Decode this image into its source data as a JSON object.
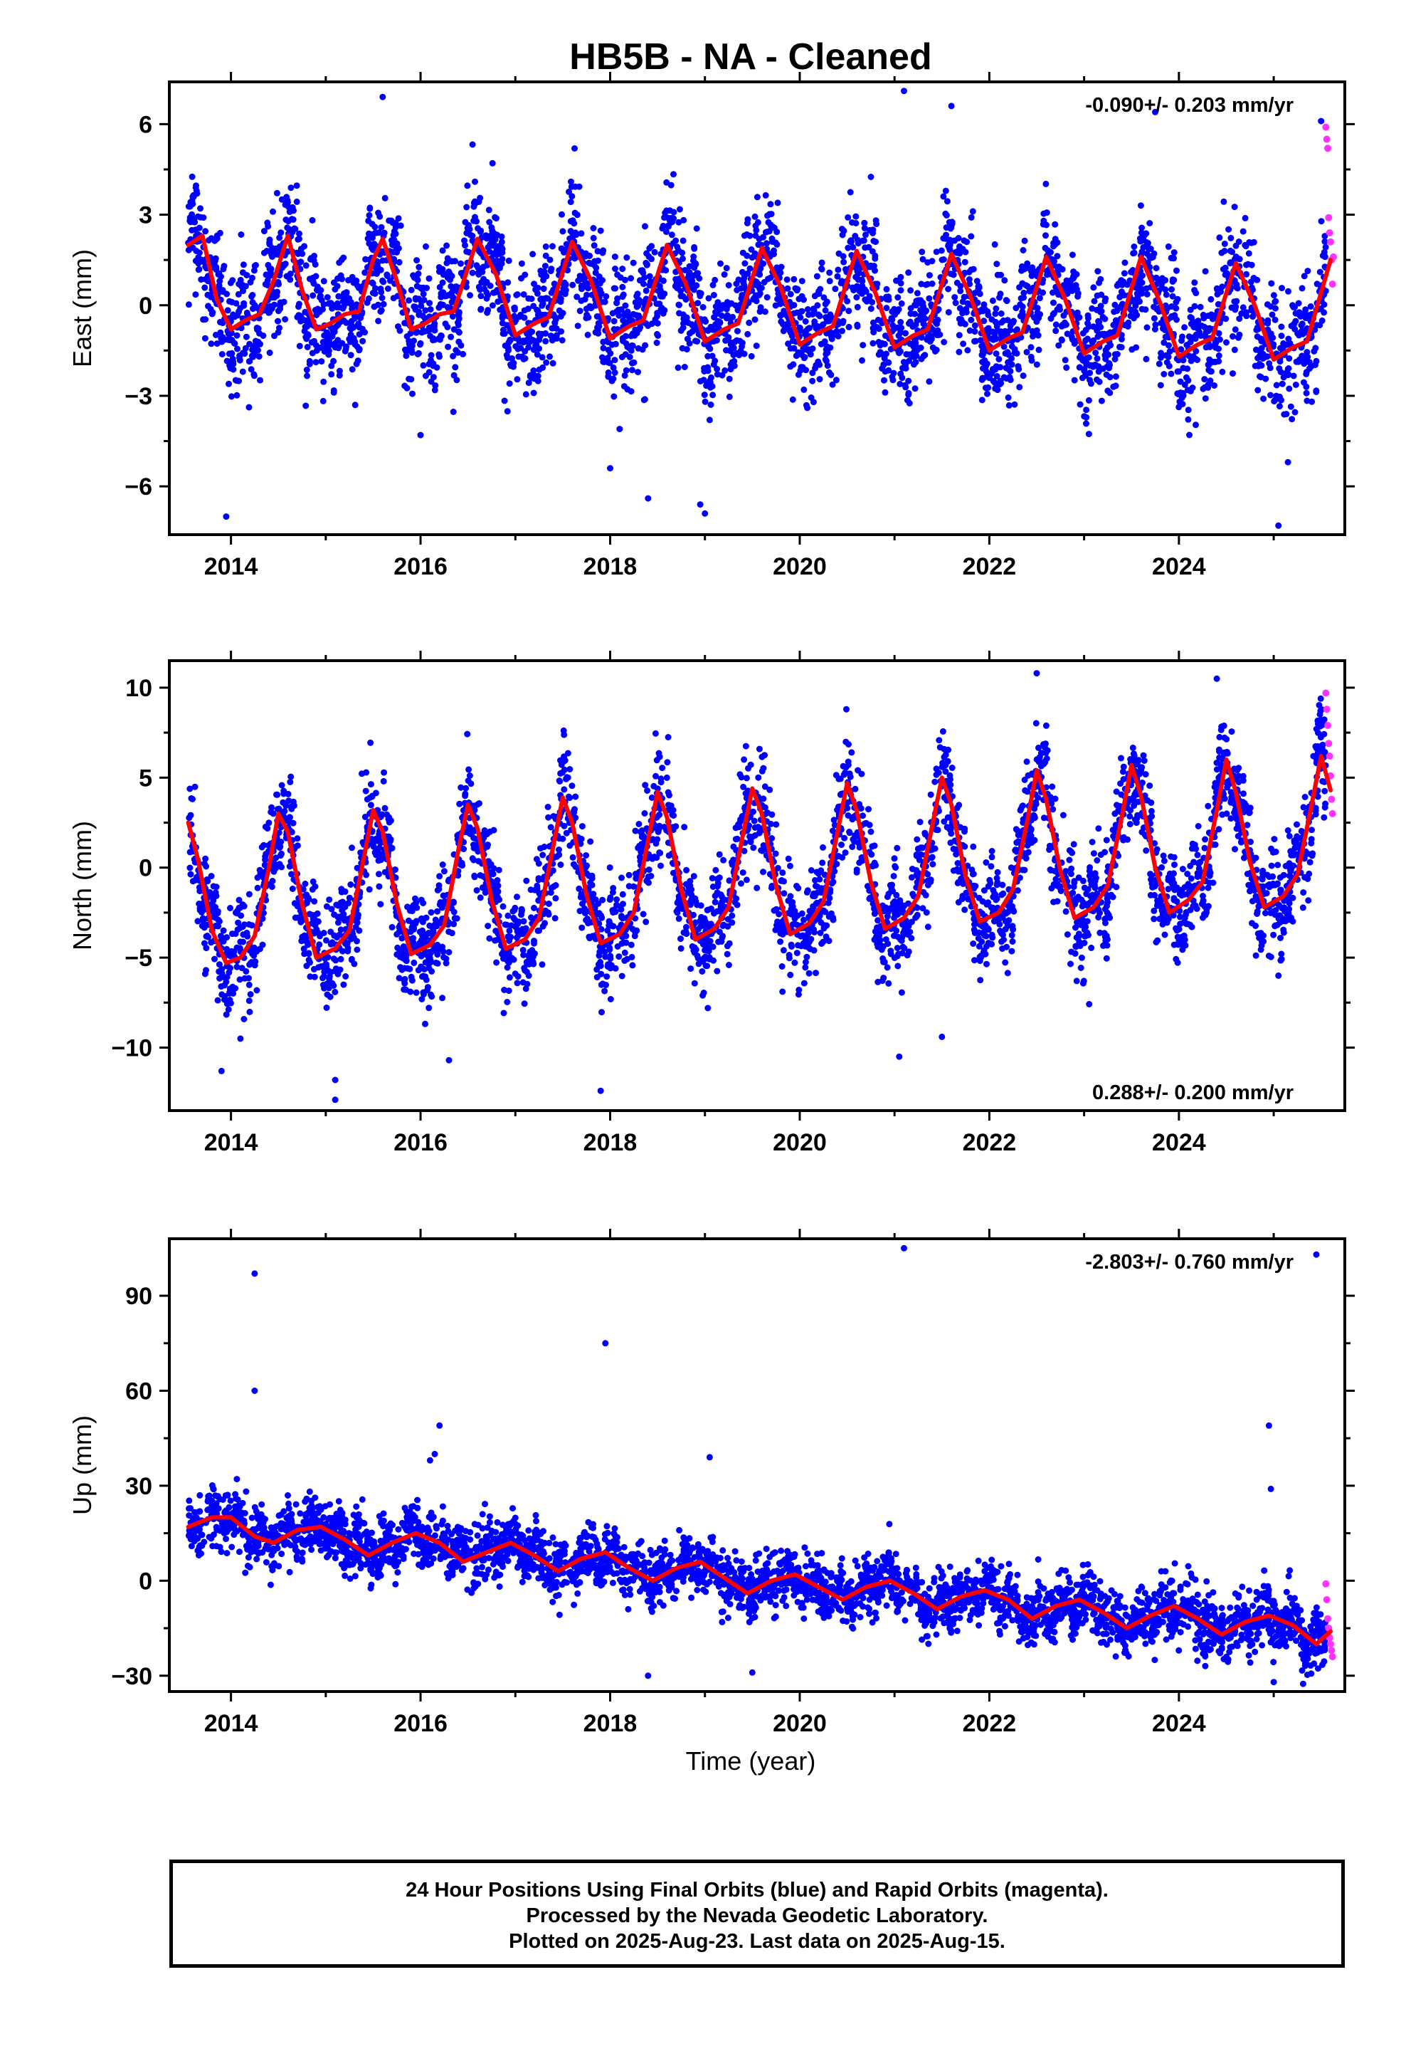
{
  "title": "HB5B  - NA - Cleaned",
  "xlabel": "Time (year)",
  "colors": {
    "final": "#0000ff",
    "rapid": "#ff33ff",
    "model": "#ff0000"
  },
  "chart_data": [
    {
      "type": "scatter",
      "name": "east",
      "ylabel": "East (mm)",
      "rate_label": "-0.090+/- 0.203 mm/yr",
      "rate_position": "top-right",
      "xlim": [
        2013.35,
        2025.75
      ],
      "ylim": [
        -7.6,
        7.4
      ],
      "xticks": [
        2014,
        2016,
        2018,
        2020,
        2022,
        2024
      ],
      "yticks": [
        -6,
        -3,
        0,
        3,
        6
      ],
      "ytick_labels": [
        "−6",
        "−3",
        "0",
        "3",
        "6"
      ],
      "model_curve": {
        "x": [
          2013.55,
          2013.7,
          2013.85,
          2014.0,
          2014.15,
          2014.3,
          2014.45,
          2014.6,
          2014.75,
          2014.9,
          2015.05,
          2015.2,
          2015.35,
          2015.5,
          2015.6,
          2015.75,
          2015.9,
          2016.05,
          2016.2,
          2016.35,
          2016.6,
          2016.8,
          2017.0,
          2017.2,
          2017.35,
          2017.6,
          2017.8,
          2018.0,
          2018.2,
          2018.35,
          2018.6,
          2018.8,
          2019.0,
          2019.2,
          2019.35,
          2019.6,
          2019.8,
          2020.0,
          2020.2,
          2020.35,
          2020.6,
          2020.8,
          2021.0,
          2021.2,
          2021.35,
          2021.6,
          2021.8,
          2022.0,
          2022.2,
          2022.35,
          2022.6,
          2022.8,
          2023.0,
          2023.2,
          2023.35,
          2023.6,
          2023.8,
          2024.0,
          2024.2,
          2024.35,
          2024.6,
          2024.8,
          2025.0,
          2025.2,
          2025.35,
          2025.6
        ],
        "y": [
          2.0,
          2.3,
          0.2,
          -0.8,
          -0.5,
          -0.3,
          0.8,
          2.3,
          0.5,
          -0.8,
          -0.6,
          -0.3,
          -0.2,
          1.5,
          2.2,
          0.8,
          -0.8,
          -0.6,
          -0.3,
          -0.2,
          2.2,
          1.0,
          -1.0,
          -0.6,
          -0.4,
          2.1,
          0.8,
          -1.1,
          -0.7,
          -0.5,
          2.0,
          0.7,
          -1.2,
          -0.8,
          -0.6,
          1.9,
          0.6,
          -1.3,
          -0.9,
          -0.7,
          1.8,
          0.4,
          -1.4,
          -1.0,
          -0.8,
          1.7,
          0.3,
          -1.5,
          -1.1,
          -0.9,
          1.6,
          0.2,
          -1.6,
          -1.2,
          -1.0,
          1.6,
          0.1,
          -1.7,
          -1.3,
          -1.1,
          1.4,
          0.0,
          -1.8,
          -1.4,
          -1.2,
          1.5
        ]
      },
      "scatter_params": {
        "trend_per_yr": -0.09,
        "annual_amplitude": 1.7,
        "peak_phase_yr": 0.6,
        "noise_sd": 1.0,
        "n_points": 3600
      },
      "anomalies": [
        [
          2013.95,
          -7.0
        ],
        [
          2015.6,
          6.9
        ],
        [
          2016.0,
          -4.3
        ],
        [
          2018.0,
          -5.4
        ],
        [
          2018.1,
          -4.1
        ],
        [
          2018.4,
          -6.4
        ],
        [
          2018.95,
          -6.6
        ],
        [
          2019.0,
          -6.9
        ],
        [
          2021.1,
          7.1
        ],
        [
          2021.6,
          6.6
        ],
        [
          2023.75,
          6.4
        ],
        [
          2025.05,
          -7.3
        ],
        [
          2025.15,
          -5.2
        ],
        [
          2025.5,
          6.1
        ]
      ],
      "rapid_points": [
        [
          2025.55,
          5.9
        ],
        [
          2025.56,
          5.5
        ],
        [
          2025.57,
          5.2
        ],
        [
          2025.58,
          2.9
        ],
        [
          2025.59,
          2.4
        ],
        [
          2025.6,
          2.1
        ],
        [
          2025.61,
          1.5
        ],
        [
          2025.62,
          0.7
        ],
        [
          2025.63,
          1.6
        ]
      ]
    },
    {
      "type": "scatter",
      "name": "north",
      "ylabel": "North (mm)",
      "rate_label": "0.288+/- 0.200 mm/yr",
      "rate_position": "bottom-right",
      "xlim": [
        2013.35,
        2025.75
      ],
      "ylim": [
        -13.5,
        11.5
      ],
      "xticks": [
        2014,
        2016,
        2018,
        2020,
        2022,
        2024
      ],
      "yticks": [
        -10,
        -5,
        0,
        5,
        10
      ],
      "ytick_labels": [
        "−10",
        "−5",
        "0",
        "5",
        "10"
      ],
      "model_curve": {
        "x": [
          2013.55,
          2013.65,
          2013.8,
          2013.95,
          2014.1,
          2014.25,
          2014.4,
          2014.5,
          2014.6,
          2014.75,
          2014.9,
          2015.1,
          2015.25,
          2015.4,
          2015.5,
          2015.6,
          2015.75,
          2015.9,
          2016.1,
          2016.25,
          2016.4,
          2016.5,
          2016.6,
          2016.75,
          2016.9,
          2017.1,
          2017.25,
          2017.4,
          2017.5,
          2017.6,
          2017.75,
          2017.9,
          2018.1,
          2018.25,
          2018.4,
          2018.5,
          2018.6,
          2018.75,
          2018.9,
          2019.1,
          2019.25,
          2019.4,
          2019.5,
          2019.6,
          2019.75,
          2019.9,
          2020.1,
          2020.25,
          2020.4,
          2020.5,
          2020.6,
          2020.75,
          2020.9,
          2021.1,
          2021.25,
          2021.4,
          2021.5,
          2021.6,
          2021.75,
          2021.9,
          2022.1,
          2022.25,
          2022.4,
          2022.5,
          2022.6,
          2022.75,
          2022.9,
          2023.1,
          2023.25,
          2023.4,
          2023.5,
          2023.6,
          2023.75,
          2023.9,
          2024.1,
          2024.25,
          2024.4,
          2024.5,
          2024.6,
          2024.75,
          2024.9,
          2025.1,
          2025.25,
          2025.4,
          2025.5,
          2025.6
        ],
        "y": [
          2.5,
          0.5,
          -3.5,
          -5.3,
          -5.0,
          -3.8,
          0.0,
          3.0,
          2.0,
          -2.0,
          -5.0,
          -4.5,
          -3.5,
          0.5,
          3.2,
          2.0,
          -2.0,
          -4.8,
          -4.3,
          -3.2,
          1.0,
          3.5,
          2.2,
          -1.8,
          -4.5,
          -4.0,
          -2.8,
          1.2,
          3.9,
          2.5,
          -1.5,
          -4.2,
          -3.7,
          -2.5,
          1.5,
          4.2,
          2.8,
          -1.2,
          -4.0,
          -3.4,
          -2.2,
          1.8,
          4.4,
          3.0,
          -1.0,
          -3.7,
          -3.1,
          -1.9,
          2.0,
          4.7,
          3.2,
          -0.8,
          -3.4,
          -2.8,
          -1.6,
          2.4,
          5.0,
          3.5,
          -0.5,
          -3.0,
          -2.5,
          -1.2,
          2.6,
          5.4,
          3.8,
          -0.2,
          -2.8,
          -2.2,
          -1.0,
          2.9,
          5.7,
          4.0,
          0.0,
          -2.5,
          -1.8,
          -0.8,
          3.2,
          6.0,
          4.2,
          0.3,
          -2.2,
          -1.6,
          -0.4,
          3.5,
          6.2,
          4.3
        ]
      },
      "scatter_params": {
        "trend_per_yr": 0.288,
        "annual_amplitude": 4.2,
        "peak_phase_yr": 0.5,
        "noise_sd": 1.4,
        "n_points": 3600
      },
      "anomalies": [
        [
          2013.9,
          -11.3
        ],
        [
          2014.1,
          -9.5
        ],
        [
          2015.1,
          -12.9
        ],
        [
          2015.1,
          -11.8
        ],
        [
          2016.3,
          -10.7
        ],
        [
          2017.9,
          -12.4
        ],
        [
          2021.05,
          -10.5
        ],
        [
          2021.5,
          -9.4
        ],
        [
          2022.5,
          10.8
        ],
        [
          2024.4,
          10.5
        ],
        [
          2025.05,
          -6.0
        ],
        [
          2024.95,
          -4.9
        ]
      ],
      "rapid_points": [
        [
          2025.55,
          9.7
        ],
        [
          2025.56,
          8.8
        ],
        [
          2025.57,
          7.9
        ],
        [
          2025.58,
          6.9
        ],
        [
          2025.59,
          6.2
        ],
        [
          2025.6,
          5.1
        ],
        [
          2025.61,
          3.8
        ],
        [
          2025.62,
          3.0
        ]
      ]
    },
    {
      "type": "scatter",
      "name": "up",
      "ylabel": "Up (mm)",
      "rate_label": "-2.803+/- 0.760 mm/yr",
      "rate_position": "top-right",
      "xlim": [
        2013.35,
        2025.75
      ],
      "ylim": [
        -35,
        108
      ],
      "xticks": [
        2014,
        2016,
        2018,
        2020,
        2022,
        2024
      ],
      "yticks": [
        -30,
        0,
        30,
        60,
        90
      ],
      "ytick_labels": [
        "−30",
        "0",
        "30",
        "60",
        "90"
      ],
      "model_curve": {
        "x": [
          2013.55,
          2013.8,
          2014.0,
          2014.25,
          2014.45,
          2014.7,
          2014.95,
          2015.2,
          2015.45,
          2015.7,
          2015.95,
          2016.2,
          2016.45,
          2016.7,
          2016.95,
          2017.2,
          2017.45,
          2017.7,
          2017.95,
          2018.2,
          2018.45,
          2018.7,
          2018.95,
          2019.2,
          2019.45,
          2019.7,
          2019.95,
          2020.2,
          2020.45,
          2020.7,
          2020.95,
          2021.2,
          2021.45,
          2021.7,
          2021.95,
          2022.2,
          2022.45,
          2022.7,
          2022.95,
          2023.2,
          2023.45,
          2023.7,
          2023.95,
          2024.2,
          2024.45,
          2024.7,
          2024.95,
          2025.2,
          2025.45,
          2025.6
        ],
        "y": [
          17,
          20,
          20,
          14,
          12,
          16,
          17,
          13,
          8,
          12,
          15,
          12,
          6,
          9,
          12,
          8,
          3,
          7,
          9,
          4,
          0,
          4,
          6,
          1,
          -4,
          0,
          2,
          -2,
          -6,
          -2,
          0,
          -4,
          -9,
          -5,
          -3,
          -6,
          -12,
          -8,
          -6,
          -10,
          -15,
          -11,
          -8,
          -12,
          -17,
          -13,
          -11,
          -14,
          -20,
          -16
        ]
      },
      "scatter_params": {
        "trend_per_yr": -2.803,
        "annual_amplitude": 3.5,
        "peak_phase_yr": 0.9,
        "noise_sd": 4.5,
        "n_points": 3600
      },
      "anomalies": [
        [
          2014.25,
          97
        ],
        [
          2014.25,
          60
        ],
        [
          2016.1,
          38
        ],
        [
          2016.2,
          49
        ],
        [
          2016.15,
          40
        ],
        [
          2017.95,
          75
        ],
        [
          2018.4,
          -30
        ],
        [
          2019.05,
          39
        ],
        [
          2019.5,
          -29
        ],
        [
          2021.1,
          105
        ],
        [
          2024.95,
          49
        ],
        [
          2024.97,
          29
        ],
        [
          2025.45,
          103
        ],
        [
          2025.0,
          -32
        ]
      ],
      "rapid_points": [
        [
          2025.55,
          -1
        ],
        [
          2025.56,
          -6
        ],
        [
          2025.57,
          -12
        ],
        [
          2025.58,
          -15
        ],
        [
          2025.59,
          -18
        ],
        [
          2025.6,
          -20
        ],
        [
          2025.61,
          -22
        ],
        [
          2025.62,
          -24
        ]
      ]
    }
  ],
  "footer": {
    "line1": "24 Hour Positions Using Final Orbits (blue) and Rapid Orbits (magenta).",
    "line2": "Processed by the Nevada Geodetic Laboratory.",
    "line3": "Plotted on 2025-Aug-23. Last data on 2025-Aug-15."
  }
}
